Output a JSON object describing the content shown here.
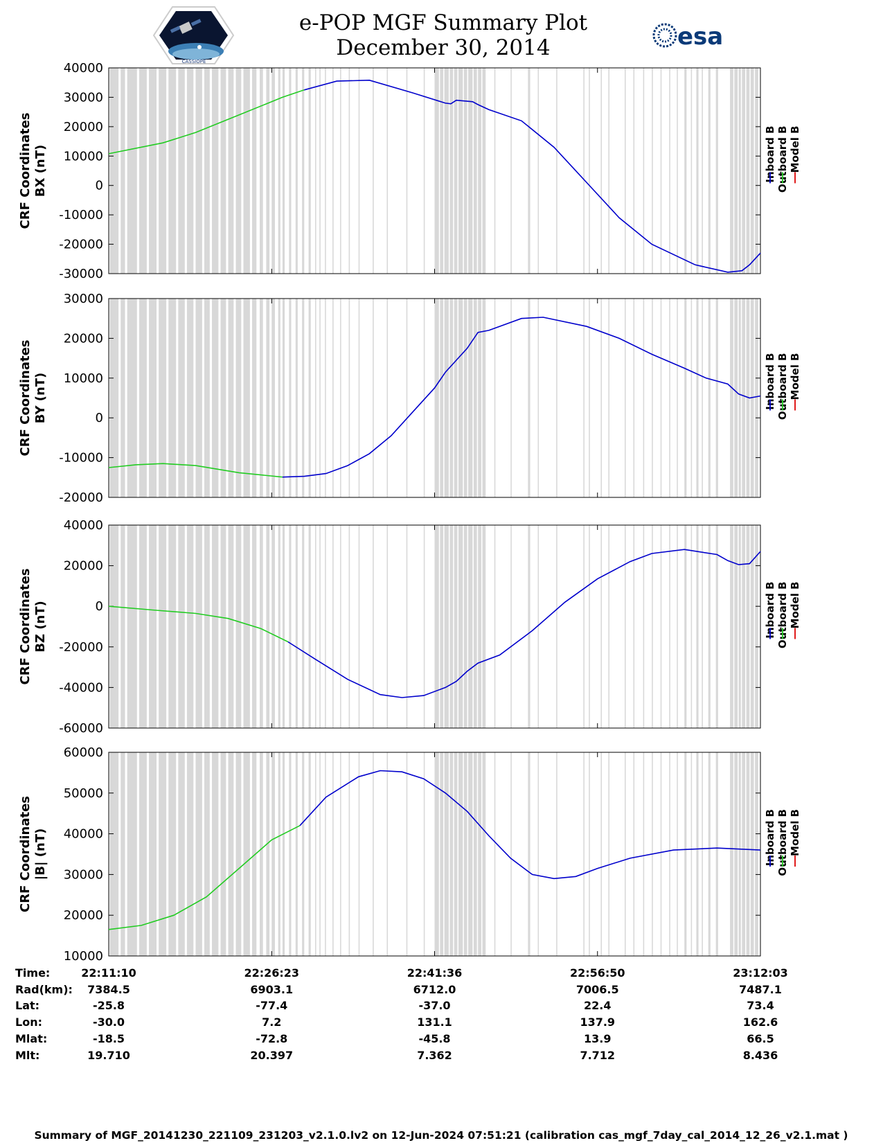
{
  "header": {
    "title_line1": "e-POP MGF Summary Plot",
    "title_line2": "December 30, 2014",
    "logo_left": "CASSIOPE",
    "logo_right": "esa"
  },
  "footer": {
    "text": "Summary of MGF_20141230_221109_231203_v2.1.0.lv2 on 12-Jun-2024 07:51:21 (calibration cas_mgf_7day_cal_2014_12_26_v2.1.mat )"
  },
  "legend": {
    "entries": [
      "Inboard B",
      "Outboard B",
      "Model B"
    ],
    "colors": [
      "#0000cc",
      "#22cc22",
      "#dd0000"
    ]
  },
  "colors": {
    "inboard": "#0000cc",
    "outboard": "#22cc22",
    "gap": "#d8d8d8"
  },
  "ephemeris": {
    "labels": [
      "Time:",
      "Rad(km):",
      "Lat:",
      "Lon:",
      "Mlat:",
      "Mlt:"
    ],
    "columns": [
      [
        "22:11:10",
        "7384.5",
        "-25.8",
        "-30.0",
        "-18.5",
        "19.710"
      ],
      [
        "22:26:23",
        "6903.1",
        "-77.4",
        "7.2",
        "-72.8",
        "20.397"
      ],
      [
        "22:41:36",
        "6712.0",
        "-37.0",
        "131.1",
        "-45.8",
        "7.362"
      ],
      [
        "22:56:50",
        "7006.5",
        "22.4",
        "137.9",
        "13.9",
        "7.712"
      ],
      [
        "23:12:03",
        "7487.1",
        "73.4",
        "162.6",
        "66.5",
        "8.436"
      ]
    ]
  },
  "chart_data": [
    {
      "type": "line",
      "ylabel_line1": "CRF Coordinates",
      "ylabel_line2": "BX (nT)",
      "ylim": [
        -30000,
        40000
      ],
      "yticks": [
        40000,
        30000,
        20000,
        10000,
        0,
        -10000,
        -20000,
        -30000
      ],
      "xlim": [
        0,
        60
      ],
      "series": [
        {
          "name": "Outboard B",
          "x": [
            0,
            5,
            8,
            12,
            16,
            18
          ],
          "values": [
            10800,
            14500,
            18000,
            24000,
            30000,
            32500
          ]
        },
        {
          "name": "Inboard B",
          "x": [
            18,
            21,
            24,
            28,
            31,
            31.5,
            32,
            33.5,
            34,
            35,
            38,
            41,
            44,
            47,
            50,
            54,
            57,
            58.3,
            59,
            60
          ],
          "values": [
            32500,
            35500,
            35800,
            31500,
            28000,
            27800,
            29000,
            28500,
            27500,
            25800,
            22000,
            13000,
            1000,
            -11000,
            -20000,
            -27000,
            -29500,
            -29000,
            -27000,
            -23000
          ]
        },
        {
          "name": "Model B",
          "x": [],
          "values": []
        }
      ]
    },
    {
      "type": "line",
      "ylabel_line1": "CRF Coordinates",
      "ylabel_line2": "BY (nT)",
      "ylim": [
        -20000,
        30000
      ],
      "yticks": [
        30000,
        20000,
        10000,
        0,
        -10000,
        -20000
      ],
      "xlim": [
        0,
        60
      ],
      "series": [
        {
          "name": "Outboard B",
          "x": [
            0,
            2.5,
            5,
            8,
            12,
            16
          ],
          "values": [
            -12500,
            -11800,
            -11500,
            -12000,
            -13800,
            -14900
          ]
        },
        {
          "name": "Inboard B",
          "x": [
            16,
            18,
            20,
            22,
            24,
            26,
            28,
            30,
            31,
            32,
            33,
            34,
            35,
            38,
            40,
            44,
            47,
            50,
            53,
            55,
            57,
            58,
            59,
            60
          ],
          "values": [
            -14900,
            -14700,
            -14000,
            -12000,
            -9000,
            -4500,
            1500,
            7500,
            11500,
            14500,
            17500,
            21500,
            22000,
            25000,
            25300,
            23000,
            20000,
            16000,
            12500,
            10000,
            8500,
            6000,
            5000,
            5500
          ]
        },
        {
          "name": "Model B",
          "x": [],
          "values": []
        }
      ]
    },
    {
      "type": "line",
      "ylabel_line1": "CRF Coordinates",
      "ylabel_line2": "BZ (nT)",
      "ylim": [
        -60000,
        40000
      ],
      "yticks": [
        40000,
        20000,
        0,
        -20000,
        -40000,
        -60000
      ],
      "xlim": [
        0,
        60
      ],
      "series": [
        {
          "name": "Outboard B",
          "x": [
            0,
            4,
            8,
            11,
            14,
            16.5
          ],
          "values": [
            0,
            -1800,
            -3500,
            -6000,
            -11000,
            -17500
          ]
        },
        {
          "name": "Inboard B",
          "x": [
            16.5,
            19,
            22,
            25,
            27,
            29,
            31,
            32,
            33,
            34,
            36,
            39,
            42,
            45,
            48,
            50,
            53,
            56,
            57,
            58,
            59,
            60
          ],
          "values": [
            -17500,
            -26000,
            -36000,
            -43500,
            -45000,
            -44000,
            -40000,
            -37000,
            -32000,
            -28000,
            -24000,
            -12000,
            2000,
            13500,
            22000,
            26000,
            28000,
            25500,
            22500,
            20500,
            21000,
            27000
          ]
        },
        {
          "name": "Model B",
          "x": [],
          "values": []
        }
      ]
    },
    {
      "type": "line",
      "ylabel_line1": "CRF Coordinates",
      "ylabel_line2": "|B| (nT)",
      "ylim": [
        10000,
        60000
      ],
      "yticks": [
        60000,
        50000,
        40000,
        30000,
        20000,
        10000
      ],
      "xlim": [
        0,
        60
      ],
      "series": [
        {
          "name": "Outboard B",
          "x": [
            0,
            3,
            6,
            9,
            12,
            15,
            17.6
          ],
          "values": [
            16500,
            17500,
            20000,
            24500,
            31500,
            38500,
            42000
          ]
        },
        {
          "name": "Inboard B",
          "x": [
            17.6,
            20,
            23,
            25,
            27,
            29,
            31,
            33,
            35,
            37,
            39,
            41,
            43,
            45,
            48,
            52,
            56,
            60
          ],
          "values": [
            42000,
            49000,
            54000,
            55500,
            55200,
            53500,
            50000,
            45500,
            39500,
            34000,
            30000,
            29000,
            29500,
            31500,
            34000,
            36000,
            36500,
            36000
          ]
        },
        {
          "name": "Model B",
          "x": [],
          "values": []
        }
      ]
    }
  ],
  "data_gaps": [
    [
      0.1,
      0.9
    ],
    [
      1.1,
      1.5
    ],
    [
      1.7,
      2.6
    ],
    [
      2.8,
      3.5
    ],
    [
      3.7,
      4.4
    ],
    [
      4.6,
      5.3
    ],
    [
      5.5,
      6.2
    ],
    [
      6.4,
      7.0
    ],
    [
      7.2,
      7.8
    ],
    [
      8.0,
      8.6
    ],
    [
      8.8,
      9.3
    ],
    [
      9.5,
      10.1
    ],
    [
      10.3,
      10.8
    ],
    [
      11.0,
      11.5
    ],
    [
      11.7,
      12.2
    ],
    [
      12.4,
      13.0
    ],
    [
      13.2,
      13.6
    ],
    [
      13.9,
      14.2
    ],
    [
      14.5,
      14.8
    ],
    [
      15.0,
      15.3
    ],
    [
      15.6,
      15.8
    ],
    [
      16.0,
      16.2
    ],
    [
      16.6,
      16.8
    ],
    [
      17.2,
      17.4
    ],
    [
      17.8,
      18.0
    ],
    [
      18.4,
      18.6
    ],
    [
      19.0,
      19.1
    ],
    [
      19.4,
      19.5
    ],
    [
      19.9,
      20.0
    ],
    [
      20.6,
      20.7
    ],
    [
      21.3,
      21.4
    ],
    [
      22.1,
      22.2
    ],
    [
      23.0,
      23.1
    ],
    [
      24.3,
      24.4
    ],
    [
      25.6,
      25.7
    ],
    [
      27.4,
      27.5
    ],
    [
      29.0,
      29.1
    ],
    [
      30.0,
      30.4
    ],
    [
      30.5,
      30.8
    ],
    [
      30.9,
      31.3
    ],
    [
      31.4,
      31.7
    ],
    [
      31.8,
      32.1
    ],
    [
      32.2,
      32.6
    ],
    [
      32.7,
      33.0
    ],
    [
      33.1,
      33.5
    ],
    [
      33.6,
      33.9
    ],
    [
      34.0,
      34.3
    ],
    [
      34.4,
      34.7
    ],
    [
      35.5,
      35.6
    ],
    [
      37.0,
      37.1
    ],
    [
      38.6,
      38.8
    ],
    [
      39.5,
      39.6
    ],
    [
      41.2,
      41.3
    ],
    [
      43.7,
      43.8
    ],
    [
      44.2,
      44.3
    ],
    [
      45.3,
      45.4
    ],
    [
      46.0,
      46.1
    ],
    [
      47.5,
      47.6
    ],
    [
      48.3,
      48.4
    ],
    [
      49.2,
      49.3
    ],
    [
      50.0,
      50.1
    ],
    [
      50.8,
      50.9
    ],
    [
      51.6,
      51.7
    ],
    [
      52.3,
      52.4
    ],
    [
      53.0,
      53.2
    ],
    [
      53.6,
      53.7
    ],
    [
      54.1,
      54.3
    ],
    [
      54.6,
      54.7
    ],
    [
      55.2,
      55.4
    ],
    [
      55.9,
      56.1
    ],
    [
      57.2,
      57.5
    ],
    [
      57.6,
      57.9
    ],
    [
      58.0,
      58.2
    ],
    [
      58.3,
      58.6
    ],
    [
      58.7,
      59.0
    ],
    [
      59.1,
      59.4
    ],
    [
      59.5,
      59.8
    ]
  ]
}
